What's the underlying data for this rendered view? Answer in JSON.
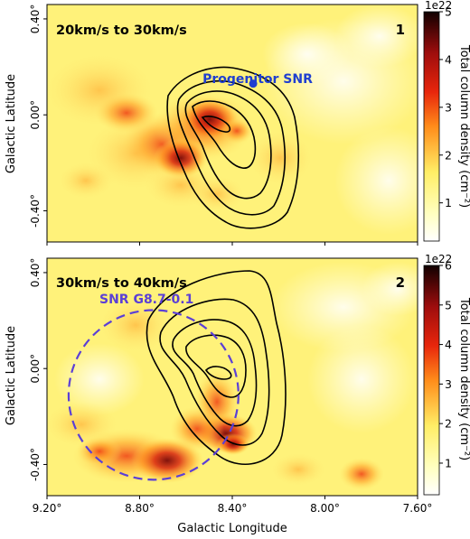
{
  "chart_data": [
    {
      "type": "heatmap",
      "panel_label": "1",
      "velocity_label": "20km/s to 30km/s",
      "ylabel": "Galactic Latitude",
      "y_ticks": [
        "0.40°",
        "0.00°",
        "-0.40°"
      ],
      "colorbar": {
        "label": "Total column density (cm⁻²)",
        "scale_text": "1e22",
        "min": 0.2,
        "max": 5,
        "ticks": [
          "1",
          "2",
          "3",
          "4",
          "5"
        ],
        "tick_values": [
          1,
          2,
          3,
          4,
          5
        ]
      },
      "marker": {
        "label": "Progenitor SNR",
        "l": 8.31,
        "b": 0.13,
        "color": "#1f3fd0"
      },
      "contour_levels": 5,
      "xlim": [
        9.2,
        7.6
      ],
      "ylim": [
        -0.53,
        0.46
      ]
    },
    {
      "type": "heatmap",
      "panel_label": "2",
      "velocity_label": "30km/s to 40km/s",
      "xlabel": "Galactic Longitude",
      "ylabel": "Galactic Latitude",
      "x_ticks": [
        "9.20°",
        "8.80°",
        "8.40°",
        "8.00°",
        "7.60°"
      ],
      "y_ticks": [
        "0.40°",
        "0.00°",
        "-0.40°"
      ],
      "colorbar": {
        "label": "Total column density (cm⁻²)",
        "scale_text": "1e22",
        "min": 0.2,
        "max": 6,
        "ticks": [
          "1",
          "2",
          "3",
          "4",
          "5",
          "6"
        ],
        "tick_values": [
          1,
          2,
          3,
          4,
          5,
          6
        ]
      },
      "snr_circle": {
        "label": "SNR G8.7-0.1",
        "center_l": 8.74,
        "center_b": -0.11,
        "radius_deg": 0.36,
        "color": "#5b3fd6"
      },
      "contour_levels": 5,
      "xlim": [
        9.2,
        7.6
      ],
      "ylim": [
        -0.53,
        0.46
      ]
    }
  ]
}
